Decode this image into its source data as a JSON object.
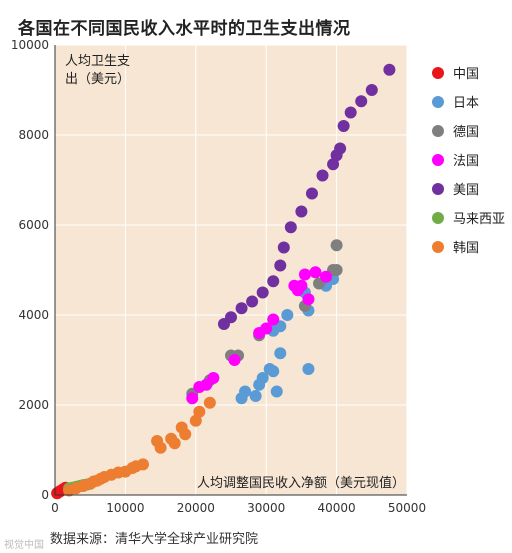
{
  "chart_data": {
    "type": "scatter",
    "title": "各国在不同国民收入水平时的卫生支出情况",
    "ylabel_lines": [
      "人均卫生支",
      "出（美元）"
    ],
    "xlabel": "人均调整国民收入净额（美元现值）",
    "xlim": [
      0,
      50000
    ],
    "ylim": [
      0,
      10000
    ],
    "xticks": [
      "0",
      "10000",
      "20000",
      "30000",
      "40000",
      "50000"
    ],
    "yticks": [
      "0",
      "2000",
      "4000",
      "6000",
      "8000",
      "10000"
    ],
    "legend_position": "right",
    "plot_background": "#f7e6d4",
    "series": [
      {
        "name": "中国",
        "color": "#e8161b",
        "points": [
          [
            300,
            40
          ],
          [
            500,
            60
          ],
          [
            700,
            80
          ],
          [
            900,
            100
          ],
          [
            1200,
            130
          ],
          [
            1500,
            160
          ]
        ]
      },
      {
        "name": "日本",
        "color": "#5b9bd5",
        "points": [
          [
            26500,
            2150
          ],
          [
            27000,
            2300
          ],
          [
            28500,
            2200
          ],
          [
            29000,
            2450
          ],
          [
            29500,
            2600
          ],
          [
            30500,
            2800
          ],
          [
            31000,
            2750
          ],
          [
            31500,
            2300
          ],
          [
            32000,
            3150
          ],
          [
            31000,
            3650
          ],
          [
            32000,
            3750
          ],
          [
            33000,
            4000
          ],
          [
            35500,
            4500
          ],
          [
            36000,
            4100
          ],
          [
            36000,
            2800
          ],
          [
            38500,
            4650
          ],
          [
            39500,
            4800
          ]
        ]
      },
      {
        "name": "德国",
        "color": "#7f7f7f",
        "points": [
          [
            19500,
            2250
          ],
          [
            22000,
            2550
          ],
          [
            25000,
            3100
          ],
          [
            26000,
            3100
          ],
          [
            29000,
            3550
          ],
          [
            35500,
            4200
          ],
          [
            37500,
            4700
          ],
          [
            39500,
            5000
          ],
          [
            40000,
            5000
          ],
          [
            40000,
            5550
          ]
        ]
      },
      {
        "name": "法国",
        "color": "#ff00ff",
        "points": [
          [
            19500,
            2150
          ],
          [
            20500,
            2400
          ],
          [
            21500,
            2450
          ],
          [
            22500,
            2600
          ],
          [
            25500,
            3000
          ],
          [
            29000,
            3600
          ],
          [
            30000,
            3700
          ],
          [
            31000,
            3900
          ],
          [
            34000,
            4650
          ],
          [
            34500,
            4550
          ],
          [
            35000,
            4650
          ],
          [
            35500,
            4900
          ],
          [
            36000,
            4350
          ],
          [
            37000,
            4950
          ],
          [
            38500,
            4850
          ]
        ]
      },
      {
        "name": "美国",
        "color": "#7030a0",
        "points": [
          [
            24000,
            3800
          ],
          [
            25000,
            3950
          ],
          [
            26500,
            4150
          ],
          [
            28000,
            4300
          ],
          [
            29500,
            4500
          ],
          [
            31000,
            4750
          ],
          [
            32000,
            5100
          ],
          [
            32500,
            5500
          ],
          [
            33500,
            5950
          ],
          [
            35000,
            6300
          ],
          [
            36500,
            6700
          ],
          [
            38000,
            7100
          ],
          [
            39500,
            7350
          ],
          [
            40000,
            7550
          ],
          [
            40500,
            7700
          ],
          [
            41000,
            8200
          ],
          [
            42000,
            8500
          ],
          [
            43500,
            8750
          ],
          [
            45000,
            9000
          ],
          [
            47500,
            9450
          ]
        ]
      },
      {
        "name": "马来西亚",
        "color": "#70ad47",
        "points": [
          [
            2000,
            150
          ],
          [
            2500,
            160
          ],
          [
            3000,
            180
          ],
          [
            3500,
            200
          ],
          [
            4000,
            220
          ],
          [
            4500,
            230
          ],
          [
            5000,
            250
          ]
        ]
      },
      {
        "name": "韩国",
        "color": "#ed7d31",
        "points": [
          [
            2000,
            100
          ],
          [
            3000,
            150
          ],
          [
            4000,
            200
          ],
          [
            5000,
            250
          ],
          [
            5500,
            300
          ],
          [
            6000,
            320
          ],
          [
            6500,
            360
          ],
          [
            7000,
            400
          ],
          [
            8000,
            450
          ],
          [
            9000,
            500
          ],
          [
            10000,
            520
          ],
          [
            11000,
            600
          ],
          [
            11500,
            640
          ],
          [
            12500,
            680
          ],
          [
            14500,
            1200
          ],
          [
            15000,
            1050
          ],
          [
            16500,
            1250
          ],
          [
            17000,
            1150
          ],
          [
            18000,
            1500
          ],
          [
            18500,
            1350
          ],
          [
            20000,
            1650
          ],
          [
            20500,
            1850
          ],
          [
            22000,
            2050
          ]
        ]
      }
    ]
  },
  "source": "数据来源：清华大学全球产业研究院",
  "watermark": "视觉中国"
}
